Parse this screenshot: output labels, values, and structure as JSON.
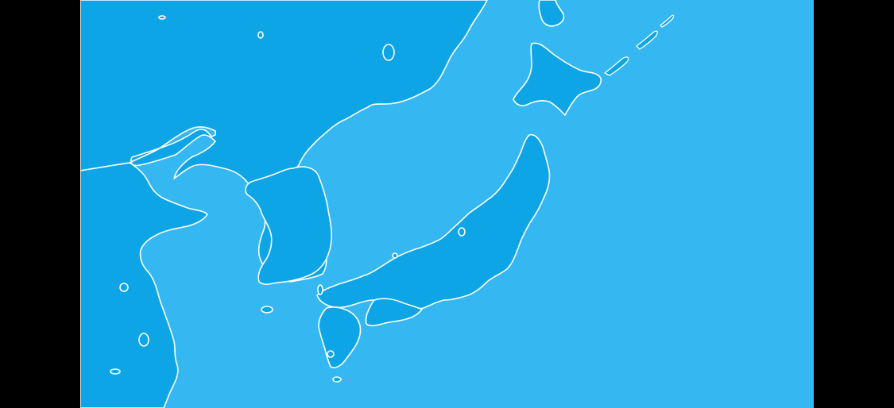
{
  "map": {
    "colors": {
      "sea": "#35b7f2",
      "land": "#0ea5e6",
      "coastline": "#ffffff",
      "letterbox": "#000000"
    },
    "regions": [
      "japan-honshu",
      "japan-hokkaido",
      "japan-kyushu",
      "japan-shikoku",
      "korean-peninsula",
      "china-mainland",
      "russia-mainland",
      "sakhalin",
      "kuril-islands"
    ]
  }
}
